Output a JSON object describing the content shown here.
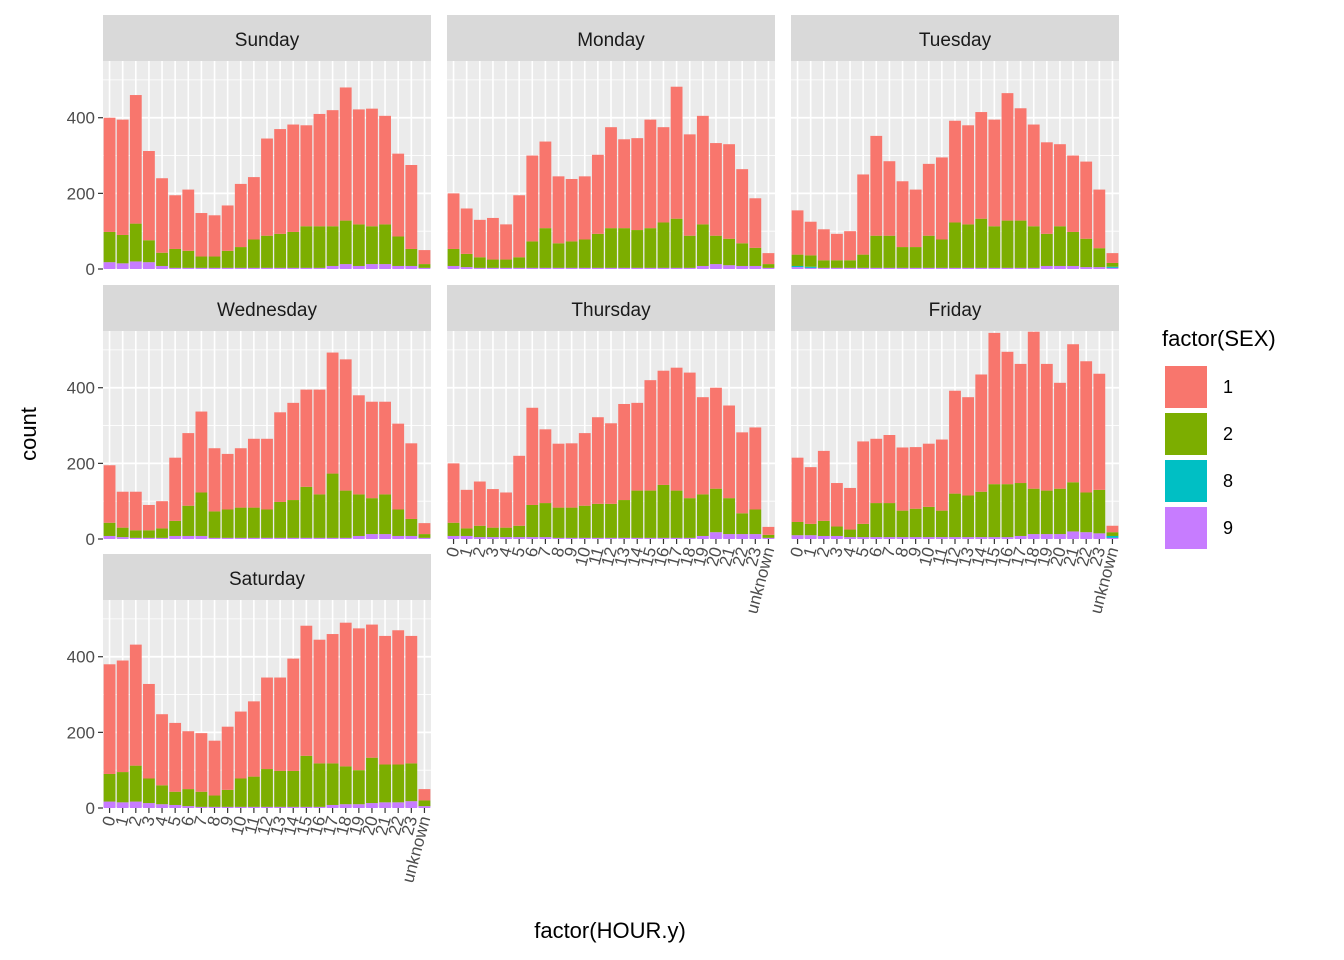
{
  "chart_data": {
    "type": "bar",
    "stacked": true,
    "faceted": true,
    "xlabel": "factor(HOUR.y)",
    "ylabel": "count",
    "categories": [
      "0",
      "1",
      "2",
      "3",
      "4",
      "5",
      "6",
      "7",
      "8",
      "9",
      "10",
      "11",
      "12",
      "13",
      "14",
      "15",
      "16",
      "17",
      "18",
      "19",
      "20",
      "21",
      "22",
      "23",
      "unknown"
    ],
    "y_ticks": [
      0,
      200,
      400
    ],
    "ylim": [
      0,
      550
    ],
    "grid": true,
    "legend": {
      "title": "factor(SEX)",
      "placement": "right",
      "entries": [
        {
          "label": "1",
          "color": "#F8766D"
        },
        {
          "label": "2",
          "color": "#7CAE00"
        },
        {
          "label": "8",
          "color": "#00BFC4"
        },
        {
          "label": "9",
          "color": "#C77CFF"
        }
      ]
    },
    "colors": {
      "1": "#F8766D",
      "2": "#7CAE00",
      "8": "#00BFC4",
      "9": "#C77CFF",
      "panel_background": "#EBEBEB",
      "strip_background": "#D9D9D9"
    },
    "facets": [
      {
        "name": "Sunday",
        "totals": [
          400,
          395,
          460,
          312,
          240,
          195,
          210,
          148,
          142,
          168,
          225,
          243,
          345,
          370,
          382,
          380,
          410,
          420,
          480,
          422,
          424,
          405,
          305,
          275,
          50
        ],
        "sex2": [
          80,
          75,
          100,
          58,
          35,
          50,
          45,
          30,
          30,
          45,
          55,
          75,
          85,
          90,
          95,
          110,
          110,
          105,
          115,
          110,
          100,
          105,
          78,
          45,
          10
        ],
        "sex8": [
          0,
          0,
          0,
          0,
          0,
          0,
          0,
          0,
          0,
          0,
          0,
          0,
          0,
          0,
          0,
          0,
          0,
          0,
          0,
          0,
          0,
          0,
          0,
          0,
          0
        ],
        "sex9": [
          18,
          15,
          20,
          18,
          8,
          3,
          3,
          3,
          3,
          3,
          3,
          3,
          3,
          3,
          3,
          3,
          3,
          8,
          13,
          8,
          13,
          13,
          8,
          8,
          3
        ]
      },
      {
        "name": "Monday",
        "totals": [
          200,
          160,
          130,
          135,
          118,
          195,
          300,
          337,
          245,
          238,
          245,
          302,
          375,
          343,
          346,
          395,
          375,
          482,
          356,
          405,
          333,
          330,
          264,
          187,
          42
        ],
        "sex2": [
          45,
          35,
          28,
          22,
          22,
          28,
          70,
          105,
          65,
          70,
          75,
          90,
          105,
          105,
          100,
          105,
          120,
          130,
          85,
          110,
          75,
          70,
          60,
          48,
          10
        ],
        "sex8": [
          0,
          0,
          0,
          0,
          0,
          0,
          0,
          0,
          0,
          0,
          0,
          0,
          0,
          0,
          0,
          0,
          0,
          0,
          0,
          0,
          0,
          0,
          0,
          0,
          0
        ],
        "sex9": [
          8,
          5,
          3,
          3,
          3,
          3,
          3,
          3,
          3,
          3,
          3,
          3,
          3,
          3,
          3,
          3,
          3,
          3,
          3,
          8,
          13,
          10,
          8,
          8,
          3
        ]
      },
      {
        "name": "Tuesday",
        "totals": [
          155,
          125,
          105,
          93,
          100,
          250,
          352,
          285,
          232,
          210,
          278,
          295,
          392,
          380,
          415,
          395,
          465,
          425,
          382,
          335,
          330,
          300,
          284,
          210,
          42
        ],
        "sex2": [
          30,
          30,
          20,
          20,
          20,
          35,
          85,
          85,
          55,
          55,
          85,
          75,
          120,
          115,
          130,
          110,
          125,
          125,
          110,
          85,
          105,
          90,
          75,
          50,
          10
        ],
        "sex8": [
          3,
          3,
          0,
          0,
          0,
          0,
          0,
          0,
          0,
          0,
          0,
          0,
          0,
          0,
          0,
          0,
          0,
          0,
          0,
          0,
          0,
          0,
          0,
          0,
          3
        ],
        "sex9": [
          5,
          3,
          3,
          3,
          3,
          3,
          3,
          3,
          3,
          3,
          3,
          3,
          3,
          3,
          3,
          3,
          3,
          3,
          3,
          8,
          8,
          8,
          5,
          5,
          3
        ]
      },
      {
        "name": "Wednesday",
        "totals": [
          195,
          125,
          125,
          90,
          100,
          215,
          280,
          337,
          240,
          225,
          240,
          265,
          265,
          335,
          360,
          395,
          395,
          493,
          475,
          380,
          363,
          363,
          305,
          253,
          42
        ],
        "sex2": [
          35,
          25,
          20,
          20,
          25,
          40,
          80,
          115,
          70,
          75,
          80,
          80,
          75,
          95,
          100,
          135,
          115,
          170,
          125,
          110,
          95,
          105,
          70,
          45,
          10
        ],
        "sex8": [
          0,
          0,
          0,
          0,
          0,
          0,
          0,
          0,
          0,
          0,
          0,
          0,
          0,
          0,
          0,
          0,
          0,
          0,
          0,
          0,
          0,
          0,
          0,
          0,
          0
        ],
        "sex9": [
          8,
          5,
          3,
          3,
          3,
          8,
          8,
          8,
          3,
          3,
          3,
          3,
          3,
          3,
          3,
          3,
          3,
          3,
          3,
          8,
          13,
          13,
          8,
          8,
          3
        ]
      },
      {
        "name": "Thursday",
        "totals": [
          200,
          130,
          152,
          132,
          123,
          220,
          347,
          290,
          252,
          253,
          280,
          322,
          306,
          357,
          360,
          420,
          445,
          453,
          440,
          375,
          400,
          353,
          282,
          295,
          32
        ],
        "sex2": [
          35,
          20,
          30,
          25,
          25,
          30,
          85,
          90,
          80,
          80,
          85,
          90,
          90,
          100,
          125,
          125,
          140,
          125,
          105,
          110,
          115,
          95,
          55,
          65,
          8
        ],
        "sex8": [
          0,
          0,
          0,
          0,
          0,
          0,
          0,
          0,
          0,
          0,
          0,
          0,
          0,
          0,
          0,
          0,
          0,
          0,
          0,
          0,
          0,
          0,
          0,
          0,
          0
        ],
        "sex9": [
          8,
          8,
          5,
          5,
          5,
          5,
          5,
          5,
          3,
          3,
          3,
          3,
          3,
          3,
          3,
          3,
          3,
          3,
          3,
          8,
          18,
          13,
          13,
          13,
          3
        ]
      },
      {
        "name": "Friday",
        "totals": [
          215,
          190,
          233,
          148,
          135,
          258,
          265,
          275,
          242,
          243,
          252,
          263,
          392,
          375,
          435,
          545,
          495,
          463,
          548,
          463,
          413,
          515,
          470,
          437,
          35
        ],
        "sex2": [
          35,
          30,
          40,
          25,
          20,
          35,
          90,
          90,
          70,
          75,
          80,
          70,
          115,
          110,
          120,
          140,
          140,
          140,
          120,
          115,
          120,
          130,
          105,
          115,
          10
        ],
        "sex8": [
          0,
          0,
          0,
          0,
          0,
          0,
          0,
          0,
          0,
          0,
          0,
          0,
          0,
          0,
          0,
          0,
          0,
          0,
          0,
          0,
          0,
          0,
          0,
          0,
          5
        ],
        "sex9": [
          10,
          10,
          8,
          8,
          5,
          5,
          5,
          5,
          5,
          5,
          5,
          5,
          5,
          5,
          5,
          5,
          5,
          8,
          13,
          13,
          13,
          20,
          18,
          15,
          3
        ]
      },
      {
        "name": "Saturday",
        "totals": [
          380,
          390,
          432,
          328,
          248,
          225,
          203,
          198,
          178,
          215,
          255,
          282,
          345,
          345,
          395,
          482,
          445,
          460,
          490,
          475,
          485,
          455,
          470,
          455,
          50
        ],
        "sex2": [
          73,
          80,
          95,
          65,
          50,
          35,
          45,
          40,
          30,
          45,
          75,
          80,
          100,
          95,
          95,
          135,
          115,
          110,
          100,
          90,
          120,
          100,
          100,
          100,
          15
        ],
        "sex8": [
          0,
          0,
          0,
          0,
          0,
          0,
          0,
          0,
          0,
          0,
          0,
          0,
          0,
          0,
          0,
          0,
          0,
          0,
          0,
          0,
          0,
          0,
          0,
          0,
          0
        ],
        "sex9": [
          17,
          15,
          17,
          13,
          10,
          8,
          5,
          3,
          3,
          3,
          3,
          3,
          3,
          3,
          3,
          3,
          3,
          8,
          10,
          10,
          13,
          15,
          15,
          18,
          5
        ]
      }
    ]
  }
}
